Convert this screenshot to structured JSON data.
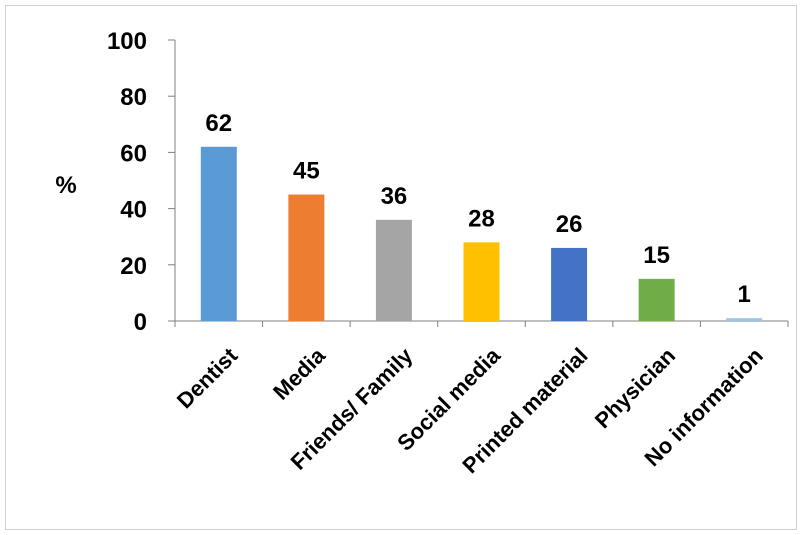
{
  "chart_data": {
    "type": "bar",
    "title": "",
    "xlabel": "",
    "ylabel": "%",
    "ylim": [
      0,
      100
    ],
    "yticks": [
      0,
      20,
      40,
      60,
      80,
      100
    ],
    "grid": false,
    "legend": "none",
    "categories": [
      "Dentist",
      "Media",
      "Friends/ Family",
      "Social media",
      "Printed material",
      "Physician",
      "No information"
    ],
    "values": [
      62,
      45,
      36,
      28,
      26,
      15,
      1
    ],
    "colors": [
      "#5b9bd5",
      "#ed7d31",
      "#a5a5a5",
      "#ffc000",
      "#4472c4",
      "#70ad47",
      "#9dc3e6"
    ]
  }
}
